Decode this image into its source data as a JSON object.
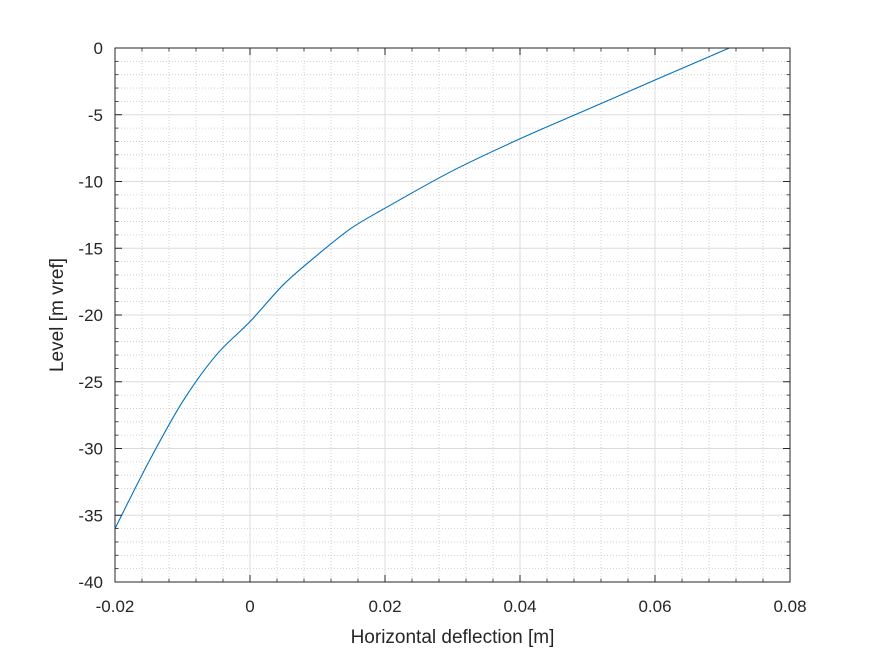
{
  "chart_data": {
    "type": "line",
    "title": "",
    "xlabel": "Horizontal deflection [m]",
    "ylabel": "Level [m vref]",
    "xlim": [
      -0.02,
      0.08
    ],
    "ylim": [
      -40,
      0
    ],
    "xticks": [
      -0.02,
      0,
      0.02,
      0.04,
      0.06,
      0.08
    ],
    "xtick_labels": [
      "-0.02",
      "0",
      "0.02",
      "0.04",
      "0.06",
      "0.08"
    ],
    "yticks": [
      0,
      -5,
      -10,
      -15,
      -20,
      -25,
      -30,
      -35,
      -40
    ],
    "ytick_labels": [
      "0",
      "-5",
      "-10",
      "-15",
      "-20",
      "-25",
      "-30",
      "-35",
      "-40"
    ],
    "grid": true,
    "minor_grid": true,
    "legend": "none",
    "series": [
      {
        "color": "#0072BD",
        "x": [
          -0.02,
          -0.015,
          -0.01,
          -0.005,
          0.0,
          0.005,
          0.01,
          0.015,
          0.02,
          0.03,
          0.04,
          0.05,
          0.06,
          0.071
        ],
        "y": [
          -36.0,
          -31.0,
          -26.5,
          -23.0,
          -20.5,
          -17.7,
          -15.5,
          -13.5,
          -12.0,
          -9.2,
          -6.8,
          -4.6,
          -2.4,
          0.0
        ]
      }
    ]
  }
}
